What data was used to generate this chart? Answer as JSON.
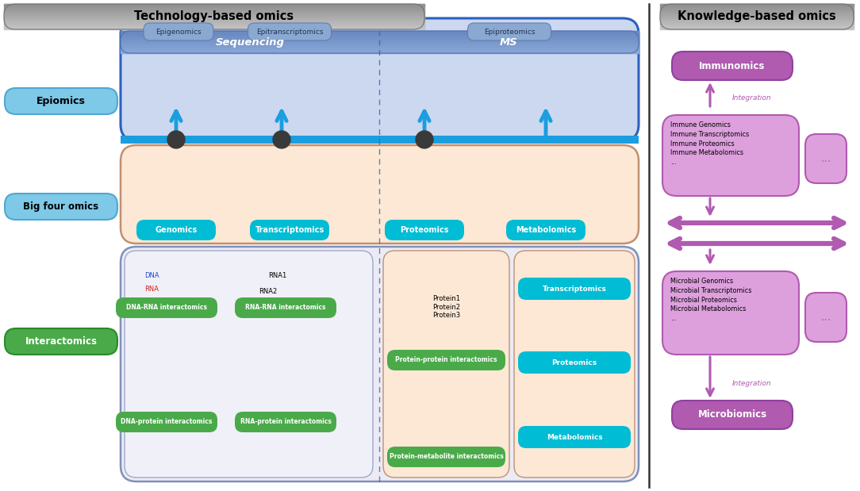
{
  "fig_width": 10.84,
  "fig_height": 6.19,
  "bg_color": "#ffffff",
  "title_tech": "Technology-based omics",
  "title_know": "Knowledge-based omics",
  "label_epiomics": "Epiomics",
  "label_bigfour": "Big four omics",
  "label_interactomics": "Interactomics",
  "label_sequencing": "Sequencing",
  "label_ms": "MS",
  "epi_boxes": [
    "Epigenomics",
    "Epitranscriptomics",
    "Epiproteomics"
  ],
  "bigfour_boxes": [
    "Genomics",
    "Transcriptomics",
    "Proteomics",
    "Metabolomics"
  ],
  "interactomics_left": [
    "DNA-RNA interactomics",
    "DNA-protein interactomics",
    "RNA-RNA interactomics",
    "RNA-protein interactomics"
  ],
  "interactomics_right_protein": "Protein-protein interactomics",
  "interactomics_right_metabolite": "Protein-metabolite interactomics",
  "interactomics_far_right": [
    "Transcriptomics",
    "Proteomics",
    "Metabolomics"
  ],
  "immuno_title": "Immunomics",
  "immuno_list": "Immune Genomics\nImmune Transcriptomics\nImmune Proteomics\nImmune Metabolomics\n...",
  "micro_title": "Microbiomics",
  "micro_list": "Microbial Genomics\nMicrobial Transcriptomics\nMicrobial Proteomics\nMicrobial Metabolomics\n...",
  "integration_text": "Integration",
  "color_blue_arrow": "#1a9ee0",
  "color_purple": "#b05ab0",
  "color_purple_light": "#dda0dd",
  "color_purple_dark": "#9040a0",
  "color_cyan": "#00bcd4",
  "color_green": "#4aaa4a",
  "color_green_dark": "#2a8a2a"
}
